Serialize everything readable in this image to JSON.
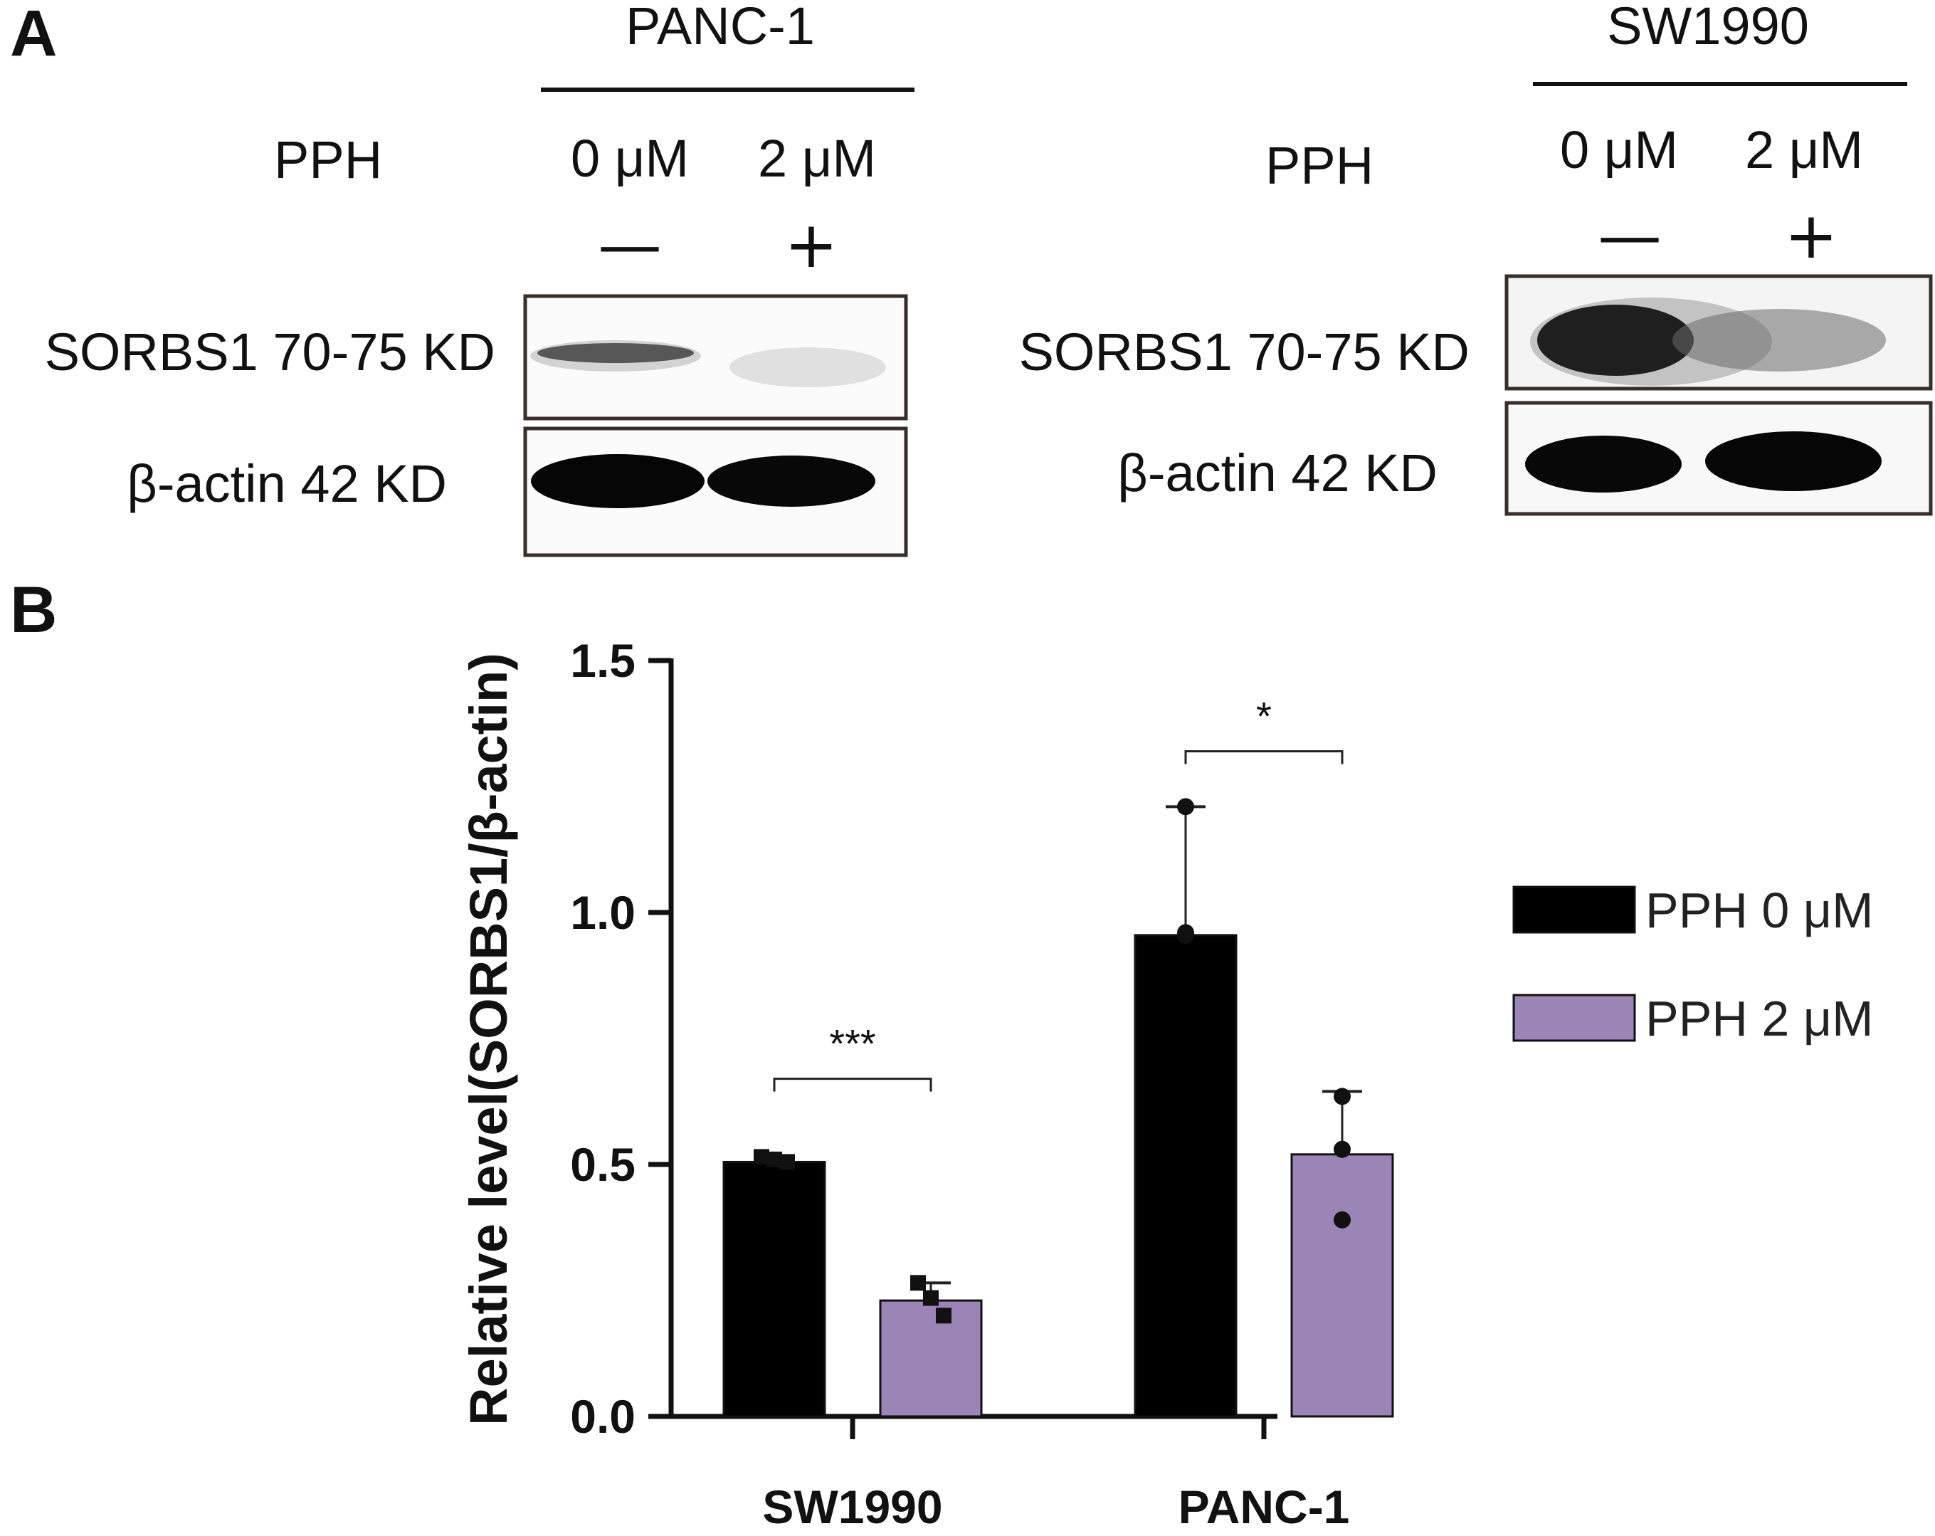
{
  "panel_a": {
    "letter": "A",
    "blots": [
      {
        "cell_line": "PANC-1",
        "treatment_label": "PPH",
        "doses": [
          "0 μM",
          "2 μM"
        ],
        "signs": [
          "—",
          "+"
        ],
        "band_labels": [
          "SORBS1 70-75 KD",
          "β-actin 42 KD"
        ]
      },
      {
        "cell_line": "SW1990",
        "treatment_label": "PPH",
        "doses": [
          "0 μM",
          "2 μM"
        ],
        "signs": [
          "—",
          "+"
        ],
        "band_labels": [
          "SORBS1 70-75 KD",
          "β-actin 42 KD"
        ]
      }
    ]
  },
  "panel_b": {
    "letter": "B"
  },
  "chart_data": {
    "type": "bar",
    "title": "",
    "xlabel": "",
    "ylabel": "Relative level(SORBS1/β-actin)",
    "ylim": [
      0,
      1.5
    ],
    "yticks": [
      "0.0",
      "0.5",
      "1.0",
      "1.5"
    ],
    "grid": false,
    "legend_position": "right",
    "categories": [
      "SW1990",
      "PANC-1"
    ],
    "series": [
      {
        "name": "PPH 0 μM",
        "color": "#000000",
        "values": [
          0.505,
          0.955
        ],
        "errors": [
          0.01,
          0.255
        ],
        "points": [
          [
            0.515,
            0.51,
            0.505
          ],
          [
            1.21,
            0.96,
            0.955
          ]
        ]
      },
      {
        "name": "PPH 2 μM",
        "color": "#9b84b6",
        "values": [
          0.23,
          0.52
        ],
        "errors": [
          0.035,
          0.125
        ],
        "points": [
          [
            0.265,
            0.235,
            0.2
          ],
          [
            0.635,
            0.53,
            0.39
          ]
        ]
      }
    ],
    "significance": [
      "***",
      "*"
    ]
  }
}
